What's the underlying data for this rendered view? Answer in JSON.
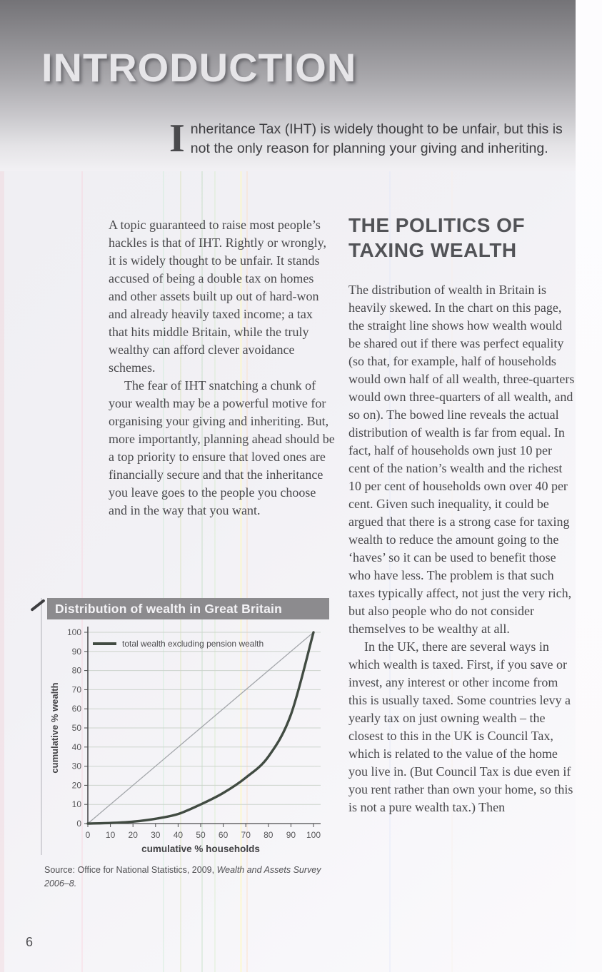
{
  "page": {
    "number": "6"
  },
  "header": {
    "title": "INTRODUCTION",
    "intro_dropcap": "I",
    "intro_text": "nheritance Tax (IHT) is widely thought to be unfair, but this is not the only reason for planning your giving and inheriting."
  },
  "left_column": {
    "paragraphs": [
      "A topic guaranteed to raise most people’s hackles is that of IHT. Rightly or wrongly, it is widely thought to be unfair. It stands accused of being a double tax on homes and other assets built up out of hard-won and already heavily taxed income; a tax that hits middle Britain, while the truly wealthy can afford clever avoidance schemes.",
      "The fear of IHT snatching a chunk of your wealth may be a powerful motive for organising your giving and inheriting. But, more importantly, planning ahead should be a top priority to ensure that loved ones are financially secure and that the inheritance you leave goes to the people you choose and in the way that you want."
    ]
  },
  "right_column": {
    "heading": "THE POLITICS OF TAXING WEALTH",
    "paragraphs": [
      "The distribution of wealth in Britain is heavily skewed. In the chart on this page, the straight line shows how wealth would be shared out if there was perfect equality (so that, for example, half of households would own half of all wealth, three-quarters would own three-quarters of all wealth, and so on). The bowed line reveals the actual distribution of wealth is far from equal. In fact, half of households own just 10 per cent of the nation’s wealth and the richest 10 per cent of households own over 40 per cent. Given such inequality, it could be argued that there is a strong case for taxing wealth to reduce the amount going to the ‘haves’ so it can be used to benefit those who have less. The problem is that such taxes typically affect, not just the very rich, but also people who do not consider themselves to be wealthy at all.",
      "In the UK, there are several ways in which wealth is taxed. First, if you save or invest, any interest or other income from this is usually taxed. Some countries levy a yearly tax on just owning wealth – the closest to this in the UK is Council Tax, which is related to the value of the home you live in. (But Council Tax is due even if you rent rather than own your home, so this is not a pure wealth tax.) Then"
    ]
  },
  "source_note": {
    "prefix": "Source: Office for National Statistics, 2009, ",
    "italic": "Wealth and Assets Survey 2006–8."
  },
  "chart_data": {
    "type": "line",
    "title": "Distribution of wealth in Great Britain",
    "xlabel": "cumulative % households",
    "ylabel": "cumulative % wealth",
    "xlim": [
      0,
      100
    ],
    "ylim": [
      0,
      100
    ],
    "x_ticks": [
      0,
      10,
      20,
      30,
      40,
      50,
      60,
      70,
      80,
      90,
      100
    ],
    "y_ticks": [
      0,
      10,
      20,
      30,
      40,
      50,
      60,
      70,
      80,
      90,
      100
    ],
    "grid": "horizontal",
    "legend_position": "top-left",
    "colors": {
      "curve": "#414b42",
      "equality_line": "#a2a6aa",
      "grid": "#ccd3cc",
      "axis": "#4b4b4d",
      "title_bar": "#8c8b8e"
    },
    "series": [
      {
        "name": "perfect equality (straight reference line)",
        "role": "reference",
        "x": [
          0,
          100
        ],
        "y": [
          0,
          100
        ]
      },
      {
        "name": "total wealth excluding pension wealth",
        "role": "lorenz-curve",
        "x": [
          0,
          10,
          20,
          30,
          40,
          50,
          60,
          70,
          80,
          90,
          100
        ],
        "y": [
          0,
          0.3,
          1,
          2.5,
          5,
          10,
          16,
          24,
          35,
          57,
          100
        ]
      }
    ]
  }
}
